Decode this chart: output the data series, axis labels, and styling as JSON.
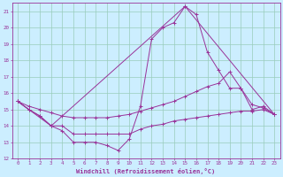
{
  "xlabel": "Windchill (Refroidissement éolien,°C)",
  "bg_color": "#cceeff",
  "grid_color": "#99ccbb",
  "line_color": "#993399",
  "xlim": [
    -0.5,
    23.5
  ],
  "ylim": [
    12,
    21.5
  ],
  "yticks": [
    12,
    13,
    14,
    15,
    16,
    17,
    18,
    19,
    20,
    21
  ],
  "xticks": [
    0,
    1,
    2,
    3,
    4,
    5,
    6,
    7,
    8,
    9,
    10,
    11,
    12,
    13,
    14,
    15,
    16,
    17,
    18,
    19,
    20,
    21,
    22,
    23
  ],
  "series": [
    {
      "x": [
        0,
        1,
        2,
        3,
        4,
        5,
        6,
        7,
        8,
        9,
        10,
        11,
        12,
        13,
        14,
        15,
        16,
        17,
        18,
        19,
        20,
        21,
        22,
        23
      ],
      "y": [
        15.5,
        15.0,
        14.6,
        14.0,
        13.7,
        13.0,
        13.0,
        13.0,
        12.8,
        12.5,
        13.2,
        15.2,
        19.3,
        20.0,
        20.3,
        21.3,
        20.8,
        18.5,
        17.4,
        16.3,
        16.3,
        15.0,
        15.2,
        14.7
      ]
    },
    {
      "x": [
        0,
        3,
        15,
        23
      ],
      "y": [
        15.5,
        14.0,
        21.3,
        14.7
      ]
    },
    {
      "x": [
        0,
        1,
        2,
        3,
        4,
        5,
        6,
        7,
        8,
        9,
        10,
        11,
        12,
        13,
        14,
        15,
        16,
        17,
        18,
        19,
        20,
        21,
        22,
        23
      ],
      "y": [
        15.5,
        15.2,
        15.0,
        14.8,
        14.6,
        14.5,
        14.5,
        14.5,
        14.5,
        14.6,
        14.7,
        14.9,
        15.1,
        15.3,
        15.5,
        15.8,
        16.1,
        16.4,
        16.6,
        17.3,
        16.3,
        15.3,
        15.1,
        14.7
      ]
    },
    {
      "x": [
        0,
        1,
        2,
        3,
        4,
        5,
        6,
        7,
        8,
        9,
        10,
        11,
        12,
        13,
        14,
        15,
        16,
        17,
        18,
        19,
        20,
        21,
        22,
        23
      ],
      "y": [
        15.5,
        15.0,
        14.6,
        14.0,
        14.0,
        13.5,
        13.5,
        13.5,
        13.5,
        13.5,
        13.5,
        13.8,
        14.0,
        14.1,
        14.3,
        14.4,
        14.5,
        14.6,
        14.7,
        14.8,
        14.9,
        14.9,
        15.0,
        14.7
      ]
    }
  ]
}
